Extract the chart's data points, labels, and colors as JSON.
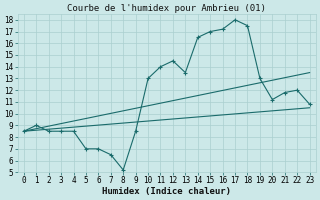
{
  "title": "Courbe de l'humidex pour Ambrieu (01)",
  "xlabel": "Humidex (Indice chaleur)",
  "bg_color": "#cce8e8",
  "grid_color": "#aacfcf",
  "line_color": "#1a6b6b",
  "xlim": [
    -0.5,
    23.5
  ],
  "ylim": [
    5,
    18.5
  ],
  "xticks": [
    0,
    1,
    2,
    3,
    4,
    5,
    6,
    7,
    8,
    9,
    10,
    11,
    12,
    13,
    14,
    15,
    16,
    17,
    18,
    19,
    20,
    21,
    22,
    23
  ],
  "yticks": [
    5,
    6,
    7,
    8,
    9,
    10,
    11,
    12,
    13,
    14,
    15,
    16,
    17,
    18
  ],
  "line1_x": [
    0,
    1,
    2,
    3,
    4,
    5,
    6,
    7,
    8,
    9,
    10,
    11,
    12,
    13,
    14,
    15,
    16,
    17,
    18,
    19,
    20,
    21,
    22,
    23
  ],
  "line1_y": [
    8.5,
    9.0,
    8.5,
    8.5,
    8.5,
    7.0,
    7.0,
    6.5,
    5.2,
    8.5,
    13.0,
    14.0,
    14.5,
    13.5,
    16.5,
    17.0,
    17.2,
    18.0,
    17.5,
    13.0,
    11.2,
    11.8,
    12.0,
    10.8
  ],
  "line2_x": [
    0,
    23
  ],
  "line2_y": [
    8.5,
    13.5
  ],
  "line3_x": [
    0,
    23
  ],
  "line3_y": [
    8.5,
    10.5
  ],
  "title_fontsize": 6.5,
  "axis_fontsize": 6.5,
  "tick_fontsize": 5.5
}
